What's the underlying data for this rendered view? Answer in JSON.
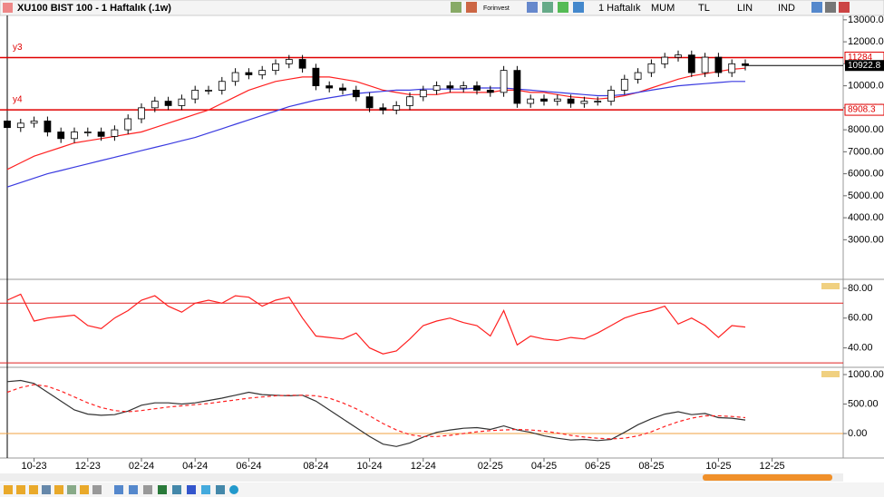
{
  "toolbar": {
    "title": "XU100 BIST 100 - 1 Haftalık (.1w)",
    "brand": "Forinvest",
    "period": "1 Haftalık",
    "style": "MUM",
    "currency": "TL",
    "scale": "LIN",
    "indicators": "IND"
  },
  "chart_data": [
    {
      "type": "candlestick",
      "categories": [
        null,
        null,
        "10-23",
        null,
        null,
        null,
        "12-23",
        null,
        null,
        null,
        "02-24",
        null,
        null,
        null,
        "04-24",
        null,
        null,
        null,
        "06-24",
        null,
        null,
        null,
        null,
        "08-24",
        null,
        null,
        null,
        "10-24",
        null,
        null,
        null,
        "12-24",
        null,
        null,
        null,
        null,
        "02-25",
        null,
        null,
        null,
        "04-25",
        null,
        null,
        null,
        "06-25",
        null,
        null,
        null,
        "08-25",
        null,
        null,
        null,
        null,
        "10-25",
        null,
        null,
        null,
        "12-25"
      ],
      "open": [
        8400,
        8100,
        8300,
        8400,
        7900,
        7600,
        7900,
        7900,
        7700,
        8000,
        8500,
        9000,
        9300,
        9100,
        9400,
        9800,
        9800,
        10200,
        10600,
        10500,
        10700,
        11000,
        11200,
        10800,
        10000,
        9900,
        9800,
        9500,
        9000,
        8900,
        9100,
        9500,
        9800,
        10000,
        9900,
        10000,
        9800,
        9700,
        10700,
        9200,
        9400,
        9300,
        9400,
        9200,
        9300,
        9300,
        9800,
        10300,
        10600,
        11000,
        11300,
        11400,
        10600,
        11300,
        10600,
        11000,
        null,
        null
      ],
      "high": [
        8600,
        8500,
        8600,
        8600,
        8100,
        8100,
        8100,
        8100,
        8200,
        8700,
        9200,
        9500,
        9500,
        9600,
        10000,
        10000,
        10400,
        10800,
        10800,
        10900,
        11200,
        11400,
        11400,
        11000,
        10200,
        10100,
        10000,
        9700,
        9200,
        9300,
        9700,
        10000,
        10200,
        10200,
        10200,
        10200,
        10000,
        10900,
        10900,
        9600,
        9600,
        9600,
        9600,
        9500,
        9500,
        10000,
        10500,
        10800,
        11200,
        11500,
        11600,
        11600,
        11500,
        11500,
        11200,
        11200,
        null,
        null
      ],
      "low": [
        7900,
        7900,
        8100,
        7700,
        7400,
        7400,
        7700,
        7500,
        7500,
        7800,
        8300,
        8800,
        8900,
        8900,
        9200,
        9600,
        9600,
        10000,
        10300,
        10300,
        10500,
        10800,
        10600,
        9800,
        9700,
        9600,
        9300,
        8800,
        8700,
        8700,
        8900,
        9300,
        9600,
        9700,
        9700,
        9600,
        9500,
        9500,
        9000,
        9000,
        9100,
        9100,
        9000,
        9000,
        9100,
        9100,
        9600,
        10100,
        10400,
        10800,
        11100,
        10400,
        10400,
        10400,
        10400,
        10700,
        null,
        null
      ],
      "close": [
        8100,
        8300,
        8400,
        7900,
        7600,
        7900,
        7900,
        7700,
        8000,
        8500,
        9000,
        9300,
        9100,
        9400,
        9800,
        9800,
        10200,
        10600,
        10500,
        10700,
        11000,
        11200,
        10800,
        10000,
        9900,
        9800,
        9500,
        9000,
        8900,
        9100,
        9500,
        9800,
        10000,
        9900,
        10000,
        9800,
        9700,
        10700,
        9200,
        9400,
        9300,
        9400,
        9200,
        9300,
        9300,
        9800,
        10300,
        10600,
        11000,
        11300,
        11400,
        10600,
        11300,
        10600,
        11000,
        10922.8,
        null,
        null
      ],
      "series": [
        {
          "color": "#ff2020",
          "values": [
            6200,
            6500,
            6800,
            7000,
            7200,
            7400,
            7500,
            7600,
            7700,
            7800,
            7900,
            8100,
            8300,
            8500,
            8700,
            8900,
            9200,
            9500,
            9800,
            10000,
            10200,
            10300,
            10400,
            10400,
            10400,
            10300,
            10200,
            10000,
            9800,
            9700,
            9600,
            9600,
            9600,
            9700,
            9700,
            9700,
            9700,
            9800,
            9800,
            9700,
            9700,
            9600,
            9500,
            9450,
            9400,
            9450,
            9550,
            9700,
            9900,
            10100,
            10300,
            10450,
            10550,
            10650,
            10750,
            10800,
            null,
            null
          ]
        },
        {
          "color": "#3a3ae0",
          "values": [
            5400,
            5600,
            5800,
            6000,
            6150,
            6300,
            6450,
            6600,
            6750,
            6900,
            7050,
            7200,
            7350,
            7500,
            7650,
            7850,
            8050,
            8250,
            8450,
            8650,
            8850,
            9050,
            9200,
            9350,
            9450,
            9550,
            9650,
            9700,
            9750,
            9800,
            9800,
            9850,
            9850,
            9850,
            9850,
            9900,
            9900,
            9900,
            9850,
            9800,
            9750,
            9700,
            9650,
            9600,
            9550,
            9550,
            9600,
            9700,
            9800,
            9900,
            10000,
            10050,
            10100,
            10150,
            10200,
            10200,
            null,
            null
          ]
        }
      ],
      "levels": [
        {
          "label": "y3",
          "value": 11284,
          "color": "#e00000"
        },
        {
          "label": "y4",
          "value": 8908.3,
          "color": "#e00000"
        }
      ],
      "last_price": 10922.8,
      "ylim": [
        1200,
        13200
      ],
      "yticks": [
        {
          "value": 3000,
          "label": "3000.00"
        },
        {
          "value": 4000,
          "label": "4000.00"
        },
        {
          "value": 5000,
          "label": "5000.00"
        },
        {
          "value": 6000,
          "label": "6000.00"
        },
        {
          "value": 7000,
          "label": "7000.00"
        },
        {
          "value": 8000,
          "label": "8000.00"
        },
        {
          "value": 9000,
          "label": "9000.00"
        },
        {
          "value": 10000,
          "label": "10000.00"
        },
        {
          "value": 11000,
          "label": "11000.00"
        },
        {
          "value": 12000,
          "label": "12000.00"
        },
        {
          "value": 13000,
          "label": "13000.00"
        }
      ]
    },
    {
      "type": "line",
      "series": [
        {
          "color": "#ff2020",
          "values": [
            72,
            76,
            58,
            60,
            61,
            62,
            55,
            53,
            60,
            65,
            72,
            75,
            68,
            64,
            70,
            72,
            70,
            75,
            74,
            68,
            72,
            74,
            60,
            48,
            47,
            46,
            50,
            40,
            36,
            38,
            46,
            55,
            58,
            60,
            57,
            55,
            48,
            65,
            42,
            48,
            46,
            45,
            47,
            46,
            50,
            55,
            60,
            63,
            65,
            68,
            56,
            60,
            55,
            47,
            55,
            54,
            null,
            null
          ]
        }
      ],
      "levels": [
        {
          "value": 70,
          "color": "#e02020"
        },
        {
          "value": 30,
          "color": "#e02020"
        }
      ],
      "ylim": [
        27,
        86
      ],
      "yticks": [
        {
          "value": 40,
          "label": "40.00"
        },
        {
          "value": 60,
          "label": "60.00"
        },
        {
          "value": 80,
          "label": "80.00"
        }
      ]
    },
    {
      "type": "line",
      "series": [
        {
          "color": "#333333",
          "values": [
            880,
            900,
            850,
            700,
            550,
            400,
            330,
            310,
            320,
            380,
            480,
            520,
            520,
            500,
            520,
            560,
            600,
            650,
            700,
            660,
            650,
            640,
            650,
            550,
            400,
            250,
            100,
            -50,
            -180,
            -220,
            -160,
            -60,
            20,
            60,
            90,
            100,
            70,
            130,
            60,
            20,
            -40,
            -80,
            -110,
            -100,
            -120,
            -100,
            20,
            150,
            250,
            330,
            370,
            320,
            340,
            270,
            260,
            230,
            null,
            null
          ]
        },
        {
          "color": "#ff2020",
          "dashed": true,
          "values": [
            700,
            780,
            830,
            800,
            720,
            620,
            520,
            440,
            390,
            370,
            390,
            420,
            450,
            470,
            490,
            510,
            540,
            570,
            600,
            620,
            640,
            650,
            650,
            640,
            600,
            520,
            420,
            300,
            170,
            60,
            -20,
            -50,
            -50,
            -30,
            0,
            30,
            50,
            60,
            70,
            60,
            40,
            10,
            -30,
            -60,
            -80,
            -90,
            -80,
            -40,
            30,
            120,
            200,
            260,
            300,
            300,
            290,
            270,
            null,
            null
          ]
        }
      ],
      "levels": [
        {
          "value": 0,
          "color": "#f0a040"
        }
      ],
      "ylim": [
        -415,
        1123
      ],
      "yticks": [
        {
          "value": 0,
          "label": "0.00"
        },
        {
          "value": 500,
          "label": "500.00"
        },
        {
          "value": 1000,
          "label": "1000.00"
        }
      ]
    }
  ]
}
